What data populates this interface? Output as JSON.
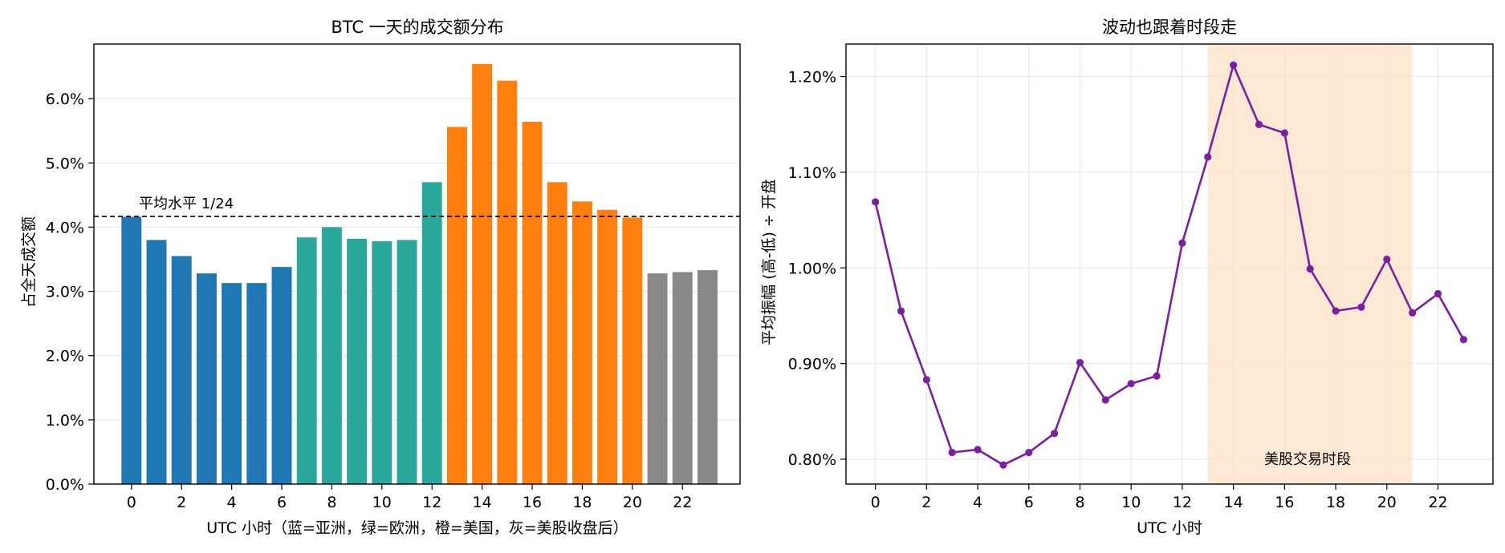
{
  "chart_data": [
    {
      "type": "bar",
      "title": "BTC 一天的成交额分布",
      "xlabel": "UTC 小时（蓝=亚洲，绿=欧洲，橙=美国，灰=美股收盘后）",
      "ylabel": "占全天成交额",
      "x": [
        0,
        1,
        2,
        3,
        4,
        5,
        6,
        7,
        8,
        9,
        10,
        11,
        12,
        13,
        14,
        15,
        16,
        17,
        18,
        19,
        20,
        21,
        22,
        23
      ],
      "values": [
        4.16,
        3.8,
        3.55,
        3.28,
        3.13,
        3.13,
        3.38,
        3.84,
        4.0,
        3.82,
        3.78,
        3.8,
        4.7,
        5.56,
        6.54,
        6.28,
        5.64,
        4.7,
        4.4,
        4.27,
        4.15,
        3.28,
        3.3,
        3.33
      ],
      "groups": [
        "asia",
        "asia",
        "asia",
        "asia",
        "asia",
        "asia",
        "asia",
        "europe",
        "europe",
        "europe",
        "europe",
        "europe",
        "europe",
        "us",
        "us",
        "us",
        "us",
        "us",
        "us",
        "us",
        "us",
        "after",
        "after",
        "after"
      ],
      "group_colors": {
        "asia": "#1f77b4",
        "europe": "#2aa89b",
        "us": "#ff7f0e",
        "after": "#888888"
      },
      "xticks": [
        0,
        2,
        4,
        6,
        8,
        10,
        12,
        14,
        16,
        18,
        20,
        22
      ],
      "xlim": [
        -1.5,
        24.3
      ],
      "yticks": [
        0,
        1,
        2,
        3,
        4,
        5,
        6
      ],
      "ytick_format": "percent1",
      "ylim": [
        0,
        6.85
      ],
      "grid": "y",
      "reference_line": {
        "value": 4.1667,
        "label": "平均水平 1/24",
        "style": "dashed",
        "color": "#000000"
      }
    },
    {
      "type": "line",
      "title": "波动也跟着时段走",
      "xlabel": "UTC 小时",
      "ylabel": "平均振幅 (高-低) ÷ 开盘",
      "x": [
        0,
        1,
        2,
        3,
        4,
        5,
        6,
        7,
        8,
        9,
        10,
        11,
        12,
        13,
        14,
        15,
        16,
        17,
        18,
        19,
        20,
        21,
        22,
        23
      ],
      "values": [
        1.069,
        0.955,
        0.883,
        0.807,
        0.81,
        0.794,
        0.807,
        0.827,
        0.901,
        0.862,
        0.879,
        0.887,
        1.026,
        1.116,
        1.212,
        1.15,
        1.141,
        0.999,
        0.955,
        0.959,
        1.009,
        0.953,
        0.973,
        0.925
      ],
      "color": "#7b1fa2",
      "xticks": [
        0,
        2,
        4,
        6,
        8,
        10,
        12,
        14,
        16,
        18,
        20,
        22
      ],
      "xlim": [
        -1.15,
        24.15
      ],
      "yticks": [
        0.8,
        0.9,
        1.0,
        1.1,
        1.2
      ],
      "ytick_format": "percent2",
      "ylim": [
        0.774,
        1.234
      ],
      "grid": "both",
      "shaded_region": {
        "x_start": 13,
        "x_end": 21,
        "label": "美股交易时段",
        "color": "#fde3c6",
        "label_color": "#c87a26"
      }
    }
  ]
}
